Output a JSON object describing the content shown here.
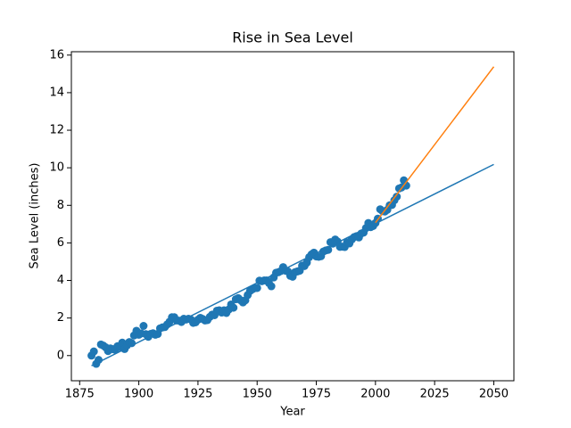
{
  "chart_data": {
    "type": "scatter",
    "title": "Rise in Sea Level",
    "x_label": "Year",
    "y_label": "Sea Level (inches)",
    "xlim": [
      1871.5,
      2058.5
    ],
    "ylim": [
      -1.34,
      16.18
    ],
    "xticks": [
      1875,
      1900,
      1925,
      1950,
      1975,
      2000,
      2025,
      2050
    ],
    "yticks": [
      0,
      2,
      4,
      6,
      8,
      10,
      12,
      14,
      16
    ],
    "series": [
      {
        "type": "scatter",
        "color": "#1f77b4",
        "x": [
          1880,
          1881,
          1882,
          1883,
          1884,
          1885,
          1886,
          1887,
          1888,
          1889,
          1890,
          1891,
          1892,
          1893,
          1894,
          1895,
          1896,
          1897,
          1898,
          1899,
          1900,
          1901,
          1902,
          1903,
          1904,
          1905,
          1906,
          1907,
          1908,
          1909,
          1910,
          1911,
          1912,
          1913,
          1914,
          1915,
          1916,
          1917,
          1918,
          1919,
          1920,
          1921,
          1922,
          1923,
          1924,
          1925,
          1926,
          1927,
          1928,
          1929,
          1930,
          1931,
          1932,
          1933,
          1934,
          1935,
          1936,
          1937,
          1938,
          1939,
          1940,
          1941,
          1942,
          1943,
          1944,
          1945,
          1946,
          1947,
          1948,
          1949,
          1950,
          1951,
          1952,
          1953,
          1954,
          1955,
          1956,
          1957,
          1958,
          1959,
          1960,
          1961,
          1962,
          1963,
          1964,
          1965,
          1966,
          1967,
          1968,
          1969,
          1970,
          1971,
          1972,
          1973,
          1974,
          1975,
          1976,
          1977,
          1978,
          1979,
          1980,
          1981,
          1982,
          1983,
          1984,
          1985,
          1986,
          1987,
          1988,
          1989,
          1990,
          1991,
          1992,
          1993,
          1994,
          1995,
          1996,
          1997,
          1998,
          1999,
          2000,
          2001,
          2002,
          2003,
          2004,
          2005,
          2006,
          2007,
          2008,
          2009,
          2010,
          2011,
          2012,
          2013
        ],
        "values": [
          0.0,
          0.22,
          -0.44,
          -0.23,
          0.59,
          0.53,
          0.44,
          0.24,
          0.38,
          0.34,
          0.31,
          0.5,
          0.45,
          0.69,
          0.35,
          0.54,
          0.72,
          0.66,
          1.07,
          1.32,
          1.11,
          1.18,
          1.58,
          1.14,
          1.0,
          1.15,
          1.19,
          1.11,
          1.15,
          1.45,
          1.5,
          1.52,
          1.66,
          1.8,
          2.04,
          2.04,
          1.87,
          1.86,
          1.79,
          1.96,
          1.92,
          1.96,
          1.92,
          1.74,
          1.77,
          1.91,
          2.01,
          1.95,
          1.87,
          1.89,
          2.06,
          2.18,
          2.15,
          2.39,
          2.41,
          2.29,
          2.41,
          2.27,
          2.45,
          2.72,
          2.55,
          3.0,
          3.06,
          2.95,
          2.83,
          2.94,
          3.22,
          3.44,
          3.53,
          3.59,
          3.6,
          3.99,
          3.96,
          4.0,
          4.0,
          3.86,
          3.69,
          4.16,
          4.41,
          4.44,
          4.5,
          4.71,
          4.52,
          4.48,
          4.25,
          4.2,
          4.44,
          4.48,
          4.52,
          4.79,
          4.77,
          4.95,
          5.24,
          5.39,
          5.48,
          5.28,
          5.26,
          5.29,
          5.54,
          5.6,
          5.63,
          6.04,
          5.96,
          6.18,
          6.07,
          5.79,
          5.8,
          5.78,
          6.03,
          5.97,
          6.18,
          6.31,
          6.36,
          6.29,
          6.5,
          6.55,
          6.79,
          7.06,
          6.84,
          6.9,
          7.06,
          7.29,
          7.79,
          7.69,
          7.67,
          7.76,
          8.0,
          8.02,
          8.27,
          8.46,
          8.9,
          8.95,
          9.33,
          9.05
        ]
      },
      {
        "type": "line",
        "color": "#1f77b4",
        "x": [
          1880,
          2050
        ],
        "values": [
          -0.54,
          10.18
        ]
      },
      {
        "type": "line",
        "color": "#ff7f0e",
        "x": [
          2000,
          2050
        ],
        "values": [
          7.08,
          15.38
        ]
      }
    ]
  }
}
